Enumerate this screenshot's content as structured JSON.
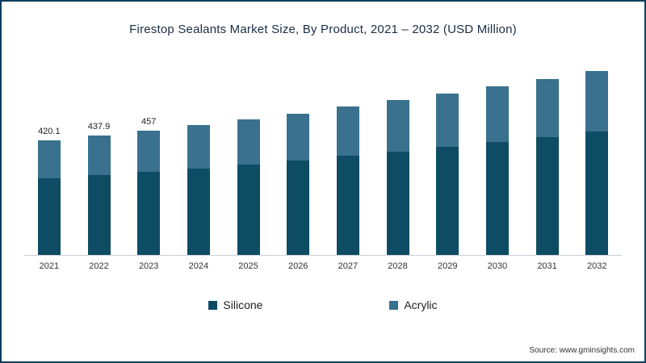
{
  "title": "Firestop Sealants Market Size, By Product, 2021 – 2032 (USD Million)",
  "source": "Source: www.gminsights.com",
  "legend": [
    {
      "label": "Silicone",
      "color": "#0e4c63"
    },
    {
      "label": "Acrylic",
      "color": "#39718f"
    }
  ],
  "chart_data": {
    "type": "bar",
    "stacked": true,
    "title": "Firestop Sealants Market Size, By Product, 2021 – 2032 (USD Million)",
    "xlabel": "",
    "ylabel": "USD Million",
    "legend_position": "bottom",
    "grid": false,
    "categories": [
      "2021",
      "2022",
      "2023",
      "2024",
      "2025",
      "2026",
      "2027",
      "2028",
      "2029",
      "2030",
      "2031",
      "2032"
    ],
    "series": [
      {
        "name": "Silicone",
        "color": "#0e4c63",
        "values": [
          281,
          292,
          305,
          318,
          332,
          347,
          363,
          379,
          396,
          414,
          433,
          453
        ]
      },
      {
        "name": "Acrylic",
        "color": "#39718f",
        "values": [
          139.1,
          145.9,
          152,
          159,
          166,
          173,
          180,
          188,
          196,
          204,
          213,
          222
        ]
      }
    ],
    "totals": [
      420.1,
      437.9,
      457,
      477,
      498,
      520,
      543,
      567,
      592,
      618,
      646,
      675
    ],
    "data_labels": [
      "420.1",
      "437.9",
      "457",
      "",
      "",
      "",
      "",
      "",
      "",
      "",
      "",
      ""
    ]
  }
}
